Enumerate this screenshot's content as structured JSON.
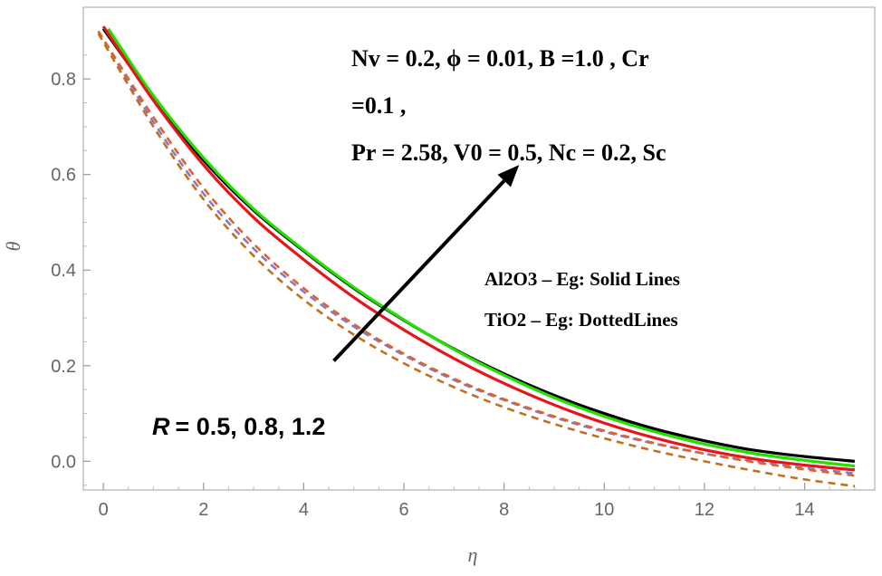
{
  "chart_data": {
    "type": "line",
    "title": "",
    "xlabel": "η",
    "ylabel": "θ",
    "xlim": [
      -0.4,
      15.4
    ],
    "ylim": [
      -0.06,
      0.95
    ],
    "x_ticks": [
      "0",
      "2",
      "4",
      "6",
      "8",
      "10",
      "12",
      "14"
    ],
    "y_ticks": [
      "0.0",
      "0.2",
      "0.4",
      "0.6",
      "0.8"
    ],
    "x_tick_values": [
      0,
      2,
      4,
      6,
      8,
      10,
      12,
      14
    ],
    "y_tick_values": [
      0.0,
      0.2,
      0.4,
      0.6,
      0.8
    ],
    "series": [
      {
        "name": "Al2O3-Eg R=1.2",
        "color": "#000000",
        "dash": "solid",
        "x": [
          0,
          1,
          2,
          3,
          4,
          5,
          6,
          7,
          8,
          9,
          10,
          11,
          12,
          13,
          14,
          15
        ],
        "values": [
          0.905,
          0.76,
          0.63,
          0.525,
          0.44,
          0.362,
          0.295,
          0.235,
          0.183,
          0.138,
          0.1,
          0.068,
          0.043,
          0.023,
          0.01,
          0.0
        ]
      },
      {
        "name": "Al2O3-Eg R=0.8",
        "color": "#22e000",
        "dash": "solid",
        "x": [
          0.1,
          1,
          2,
          3,
          4,
          5,
          6,
          7,
          8,
          9,
          10,
          11,
          12,
          13,
          14,
          15
        ],
        "values": [
          0.905,
          0.765,
          0.635,
          0.528,
          0.442,
          0.364,
          0.296,
          0.234,
          0.18,
          0.133,
          0.094,
          0.062,
          0.036,
          0.016,
          0.002,
          -0.01
        ]
      },
      {
        "name": "Al2O3-Eg R=0.5",
        "color": "#e8141c",
        "dash": "solid",
        "x": [
          0,
          1,
          2,
          3,
          4,
          5,
          6,
          7,
          8,
          9,
          10,
          11,
          12,
          13,
          14,
          15
        ],
        "values": [
          0.91,
          0.755,
          0.62,
          0.51,
          0.422,
          0.343,
          0.275,
          0.215,
          0.163,
          0.118,
          0.08,
          0.049,
          0.024,
          0.005,
          -0.008,
          -0.018
        ]
      },
      {
        "name": "TiO2-Eg R=0.5",
        "color": "#8878c8",
        "dash": "dashed",
        "x": [
          -0.1,
          1,
          2,
          3,
          4,
          5,
          6,
          7,
          8,
          9,
          10,
          11,
          12,
          13,
          14,
          15
        ],
        "values": [
          0.9,
          0.71,
          0.56,
          0.445,
          0.355,
          0.282,
          0.222,
          0.17,
          0.128,
          0.092,
          0.062,
          0.037,
          0.016,
          0.0,
          -0.014,
          -0.025
        ]
      },
      {
        "name": "TiO2-Eg R=0.8",
        "color": "#e0622a",
        "dash": "dashed",
        "x": [
          -0.1,
          1,
          2,
          3,
          4,
          5,
          6,
          7,
          8,
          9,
          10,
          11,
          12,
          13,
          14,
          15
        ],
        "values": [
          0.9,
          0.72,
          0.572,
          0.455,
          0.362,
          0.287,
          0.225,
          0.173,
          0.13,
          0.094,
          0.064,
          0.038,
          0.016,
          -0.002,
          -0.017,
          -0.03
        ]
      },
      {
        "name": "TiO2-Eg R=1.2",
        "color": "#c0701e",
        "dash": "dashed",
        "x": [
          -0.1,
          1,
          2,
          3,
          4,
          5,
          6,
          7,
          8,
          9,
          10,
          11,
          12,
          13,
          14,
          15
        ],
        "values": [
          0.895,
          0.7,
          0.548,
          0.43,
          0.338,
          0.265,
          0.205,
          0.155,
          0.113,
          0.078,
          0.048,
          0.022,
          0.0,
          -0.02,
          -0.038,
          -0.052
        ]
      }
    ],
    "annotations": {
      "params_line1": "Nv = 0.2, ϕ = 0.01, B =1.0 , Cr",
      "params_line2": "=0.1 ,",
      "params_line3": "Pr = 2.58, V0 = 0.5, Nc = 0.2, Sc",
      "legend_solid": "Al2O3 – Eg: Solid Lines",
      "legend_dotted": "TiO2 – Eg: DottedLines",
      "r_symbol": "R",
      "r_values": "= 0.5, 0.8, 1.2"
    },
    "arrow": {
      "from": [
        4.6,
        0.21
      ],
      "to": [
        8.3,
        0.62
      ]
    }
  }
}
